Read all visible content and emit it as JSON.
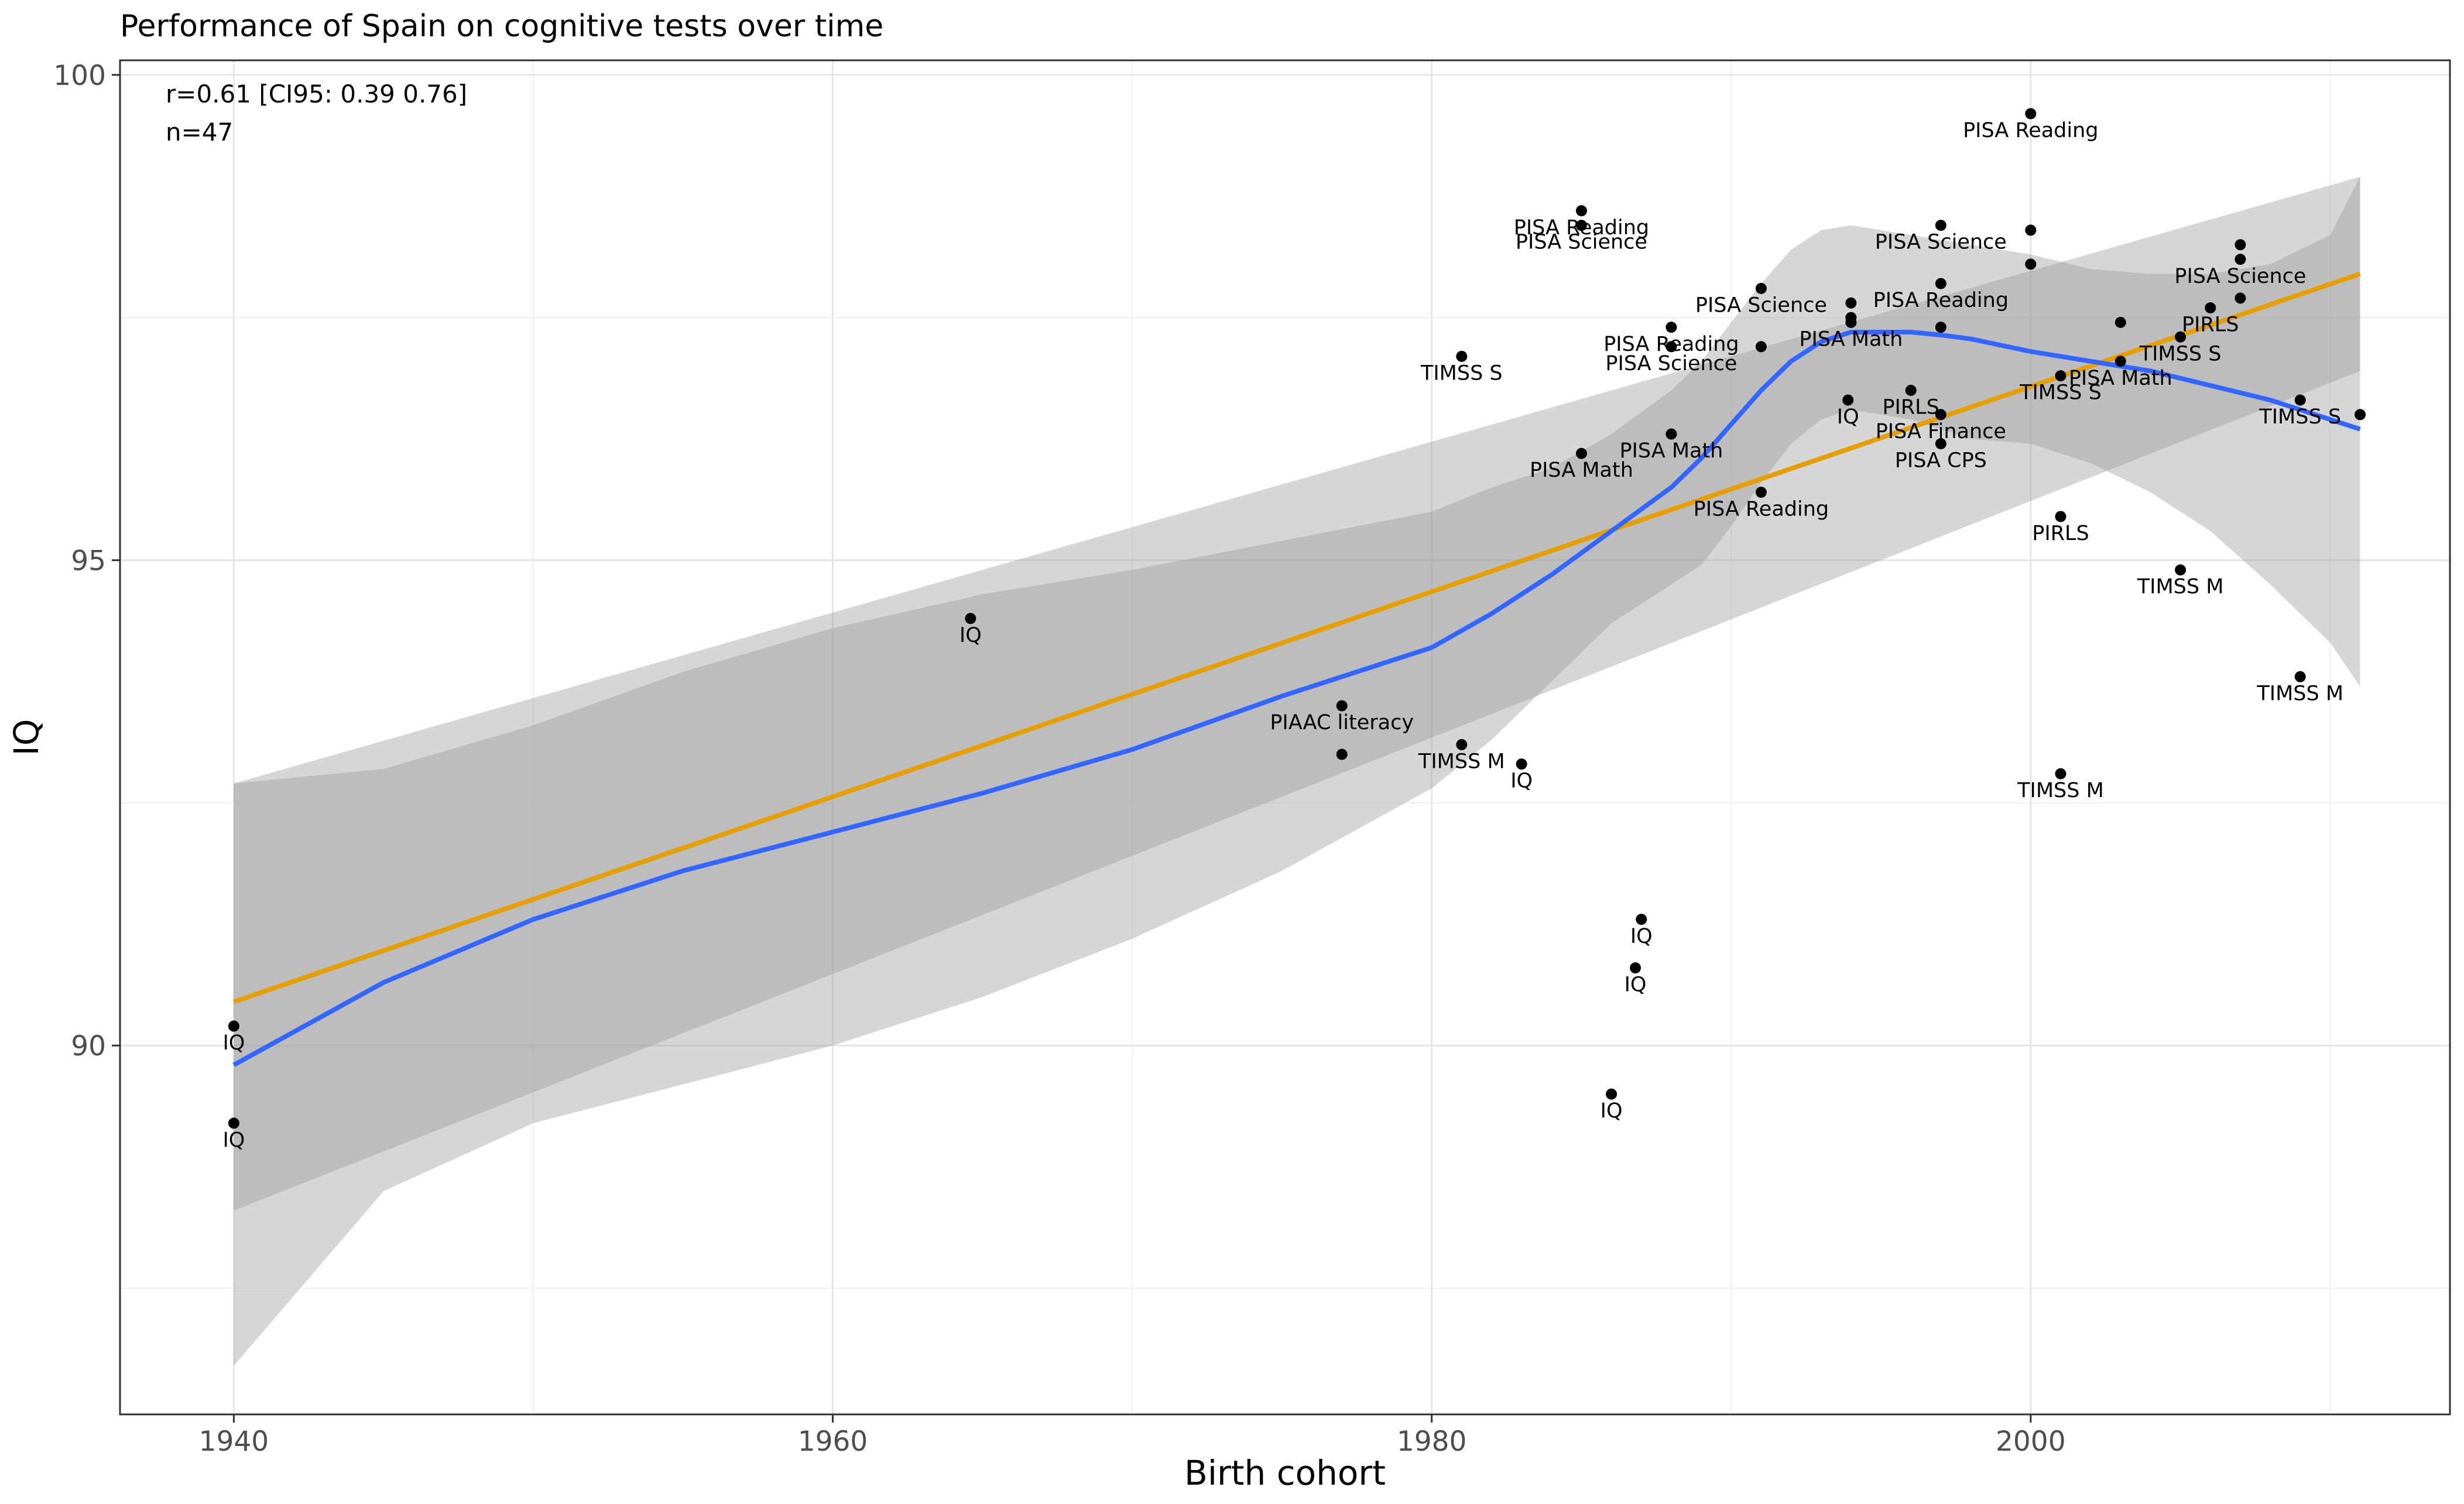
{
  "chart_data": {
    "type": "scatter",
    "title": "Performance of Spain on cognitive tests over time",
    "xlabel": "Birth cohort",
    "ylabel": "IQ",
    "xlim": [
      1936.2,
      2014.0
    ],
    "ylim": [
      86.2,
      100.15
    ],
    "x_ticks": [
      1940,
      1960,
      1980,
      2000
    ],
    "y_ticks": [
      90,
      95,
      100
    ],
    "grid": true,
    "annotations": [
      "r=0.61 [CI95: 0.39 0.76]",
      "n=47"
    ],
    "points": [
      {
        "x": 1940,
        "y": 90.2,
        "label": "IQ"
      },
      {
        "x": 1940,
        "y": 89.2,
        "label": "IQ"
      },
      {
        "x": 1964.6,
        "y": 94.4,
        "label": "IQ"
      },
      {
        "x": 1977,
        "y": 93.5,
        "label": "PIAAC literacy"
      },
      {
        "x": 1977,
        "y": 93.0,
        "label": ""
      },
      {
        "x": 1981,
        "y": 93.1,
        "label": "TIMSS M"
      },
      {
        "x": 1983,
        "y": 92.9,
        "label": "IQ"
      },
      {
        "x": 1981,
        "y": 97.1,
        "label": "TIMSS S"
      },
      {
        "x": 1985,
        "y": 98.6,
        "label": "PISA Reading"
      },
      {
        "x": 1985,
        "y": 98.45,
        "label": "PISA Science"
      },
      {
        "x": 1985,
        "y": 96.1,
        "label": "PISA Math"
      },
      {
        "x": 1986,
        "y": 89.5,
        "label": "IQ"
      },
      {
        "x": 1986.8,
        "y": 90.8,
        "label": "IQ"
      },
      {
        "x": 1987,
        "y": 91.3,
        "label": "IQ"
      },
      {
        "x": 1988,
        "y": 97.4,
        "label": "PISA Reading"
      },
      {
        "x": 1988,
        "y": 97.2,
        "label": "PISA Science"
      },
      {
        "x": 1988,
        "y": 96.3,
        "label": "PISA Math"
      },
      {
        "x": 1991,
        "y": 97.8,
        "label": "PISA Science"
      },
      {
        "x": 1991,
        "y": 97.2,
        "label": ""
      },
      {
        "x": 1991,
        "y": 95.7,
        "label": "PISA Reading"
      },
      {
        "x": 1994,
        "y": 97.65,
        "label": ""
      },
      {
        "x": 1994,
        "y": 97.5,
        "label": ""
      },
      {
        "x": 1994,
        "y": 97.45,
        "label": "PISA Math"
      },
      {
        "x": 1993.9,
        "y": 96.65,
        "label": "IQ"
      },
      {
        "x": 1996,
        "y": 96.75,
        "label": "PIRLS"
      },
      {
        "x": 1997,
        "y": 98.45,
        "label": "PISA Science"
      },
      {
        "x": 1997,
        "y": 97.85,
        "label": "PISA Reading"
      },
      {
        "x": 1997,
        "y": 97.4,
        "label": ""
      },
      {
        "x": 1997,
        "y": 96.5,
        "label": "PISA Finance"
      },
      {
        "x": 1997,
        "y": 96.2,
        "label": "PISA CPS"
      },
      {
        "x": 2000,
        "y": 99.6,
        "label": "PISA Reading"
      },
      {
        "x": 2000,
        "y": 98.4,
        "label": ""
      },
      {
        "x": 2000,
        "y": 98.05,
        "label": ""
      },
      {
        "x": 2001,
        "y": 96.9,
        "label": "TIMSS S"
      },
      {
        "x": 2001,
        "y": 95.45,
        "label": "PIRLS"
      },
      {
        "x": 2001,
        "y": 92.8,
        "label": "TIMSS M"
      },
      {
        "x": 2003,
        "y": 97.45,
        "label": ""
      },
      {
        "x": 2003,
        "y": 97.05,
        "label": "PISA Math"
      },
      {
        "x": 2005,
        "y": 97.3,
        "label": "TIMSS S"
      },
      {
        "x": 2005,
        "y": 94.9,
        "label": "TIMSS M"
      },
      {
        "x": 2006,
        "y": 97.6,
        "label": "PIRLS"
      },
      {
        "x": 2007,
        "y": 98.25,
        "label": ""
      },
      {
        "x": 2007,
        "y": 98.1,
        "label": "PISA Science"
      },
      {
        "x": 2007,
        "y": 97.7,
        "label": ""
      },
      {
        "x": 2009,
        "y": 96.65,
        "label": "TIMSS S"
      },
      {
        "x": 2009,
        "y": 93.8,
        "label": "TIMSS M"
      },
      {
        "x": 2011,
        "y": 96.5,
        "label": ""
      }
    ],
    "linear_fit": {
      "color": "#E69F00",
      "x": [
        1940,
        2011
      ],
      "y": [
        90.45,
        97.95
      ],
      "ci_lower": [
        88.3,
        96.95
      ],
      "ci_upper": [
        92.7,
        98.95
      ]
    },
    "loess_fit": {
      "color": "#3366FF",
      "x": [
        1940,
        1945,
        1950,
        1955,
        1960,
        1965,
        1970,
        1975,
        1980,
        1982,
        1984,
        1986,
        1988,
        1989,
        1990,
        1991,
        1992,
        1993,
        1994,
        1995,
        1996,
        1997,
        1998,
        2000,
        2002,
        2004,
        2006,
        2008,
        2010,
        2011
      ],
      "y": [
        89.8,
        90.65,
        91.3,
        91.8,
        92.2,
        92.6,
        93.05,
        93.6,
        94.1,
        94.45,
        94.85,
        95.3,
        95.75,
        96.05,
        96.4,
        96.75,
        97.05,
        97.25,
        97.35,
        97.35,
        97.35,
        97.32,
        97.28,
        97.15,
        97.05,
        96.95,
        96.8,
        96.65,
        96.45,
        96.35
      ],
      "ci_lower": [
        86.7,
        88.5,
        89.2,
        89.6,
        90.0,
        90.5,
        91.1,
        91.8,
        92.65,
        93.15,
        93.75,
        94.35,
        94.75,
        94.95,
        95.35,
        95.8,
        96.2,
        96.45,
        96.55,
        96.5,
        96.45,
        96.35,
        96.25,
        96.2,
        96.0,
        95.7,
        95.3,
        94.75,
        94.15,
        93.7
      ],
      "ci_upper": [
        92.7,
        92.85,
        93.3,
        93.85,
        94.3,
        94.65,
        94.9,
        95.2,
        95.5,
        95.75,
        95.95,
        96.3,
        96.75,
        97.05,
        97.45,
        97.85,
        98.2,
        98.4,
        98.45,
        98.4,
        98.35,
        98.3,
        98.25,
        98.15,
        98.0,
        97.95,
        97.95,
        98.05,
        98.35,
        98.95
      ]
    }
  }
}
